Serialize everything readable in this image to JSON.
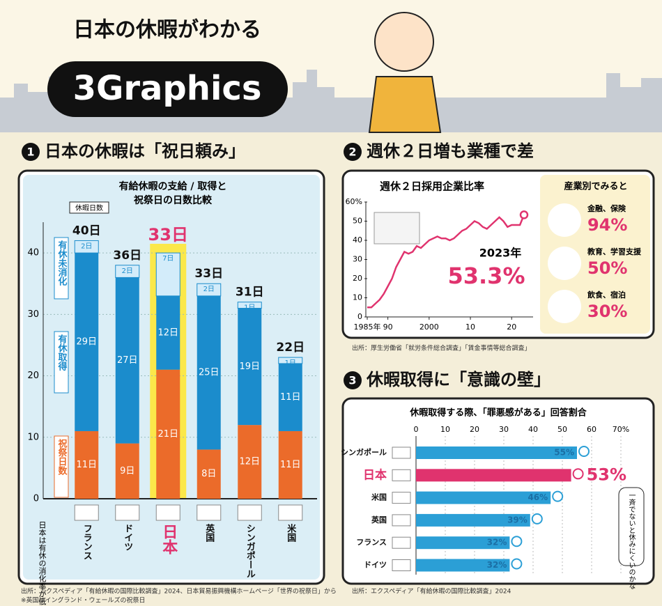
{
  "header": {
    "subtitle": "日本の休暇がわかる",
    "title": "3Graphics"
  },
  "sections": [
    {
      "number": "1",
      "title": "日本の休暇は「祝日頼み」"
    },
    {
      "number": "2",
      "title": "週休２日増も業種で差"
    },
    {
      "number": "3",
      "title": "休暇取得に「意識の壁」"
    }
  ],
  "chart_data": [
    {
      "type": "bar",
      "stacked": true,
      "title": "有給休暇の支給 / 取得と",
      "title2": "祝祭日の日数比較",
      "axis_label": "休暇日数",
      "categories": [
        "フランス",
        "ドイツ",
        "日本",
        "英国",
        "シンガポール",
        "米国"
      ],
      "series": [
        {
          "name": "祝祭日数",
          "color": "#eb6b2a",
          "values": [
            11,
            9,
            21,
            8,
            12,
            11
          ],
          "value_labels": [
            "11日",
            "9日",
            "21日",
            "8日",
            "12日",
            "11日"
          ]
        },
        {
          "name": "有休取得",
          "color": "#1b8ccc",
          "values": [
            29,
            27,
            12,
            25,
            19,
            11
          ],
          "value_labels": [
            "29日",
            "27日",
            "12日",
            "25日",
            "19日",
            "11日"
          ]
        },
        {
          "name": "有休未消化",
          "color": "#d3ecfa",
          "values": [
            2,
            2,
            7,
            2,
            1,
            1
          ],
          "value_labels": [
            "2日",
            "2日",
            "7日",
            "2日",
            "1日",
            "1日"
          ]
        }
      ],
      "total_labels": [
        "40日",
        "36日",
        "33日",
        "33日",
        "31日",
        "22日"
      ],
      "highlight": 2,
      "ylim": [
        0,
        45
      ],
      "yticks": [
        0,
        10,
        20,
        30,
        40
      ],
      "grid": true,
      "annotation": "日本は有休の消化率が低い",
      "source": "出所：エクスペディア「有給休暇の国際比較調査」2024、日本貿易振興機構ホームページ「世界の祝祭日」から",
      "note": "※英国はイングランド・ウェールズの祝祭日"
    },
    {
      "type": "line",
      "title": "週休２日採用企業比率",
      "color": "#e0336e",
      "x": [
        1985,
        1986,
        1987,
        1988,
        1989,
        1990,
        1991,
        1992,
        1993,
        1994,
        1995,
        1996,
        1997,
        1998,
        1999,
        2000,
        2001,
        2002,
        2003,
        2004,
        2005,
        2006,
        2007,
        2008,
        2009,
        2010,
        2011,
        2012,
        2013,
        2014,
        2015,
        2016,
        2017,
        2018,
        2019,
        2020,
        2021,
        2022,
        2023
      ],
      "values": [
        5,
        5,
        7,
        9,
        12,
        16,
        20,
        26,
        30,
        34,
        33,
        34,
        37,
        36,
        38,
        40,
        41,
        42,
        41,
        41,
        40,
        41,
        43,
        45,
        46,
        48,
        50,
        49,
        47,
        46,
        48,
        50,
        52,
        50,
        47,
        48,
        48,
        48,
        53.3
      ],
      "annotation": {
        "label": "2023年",
        "value_label": "53.3%"
      },
      "xlim": [
        1984,
        2025
      ],
      "ylim": [
        0,
        60
      ],
      "xticks": [
        {
          "value": 1985,
          "label": "1985年"
        },
        {
          "value": 1990,
          "label": "90"
        },
        2000,
        {
          "value": 2010,
          "label": "10"
        },
        {
          "value": 2020,
          "label": "20"
        }
      ],
      "yticks": [
        0,
        10,
        20,
        30,
        40,
        50,
        {
          "value": 60,
          "label": "60%"
        }
      ],
      "side_title": "産業別でみると",
      "side_items": [
        {
          "name": "金融、保険",
          "value": "94%"
        },
        {
          "name": "教育、学習支援",
          "value": "50%"
        },
        {
          "name": "飲食、宿泊",
          "value": "30%"
        }
      ],
      "source": "出所：厚生労働省「就労条件総合調査」「賃金事情等総合調査」"
    },
    {
      "type": "bar",
      "orientation": "horizontal",
      "title": "休暇取得する際、「罪悪感がある」回答割合",
      "categories": [
        "シンガポール",
        "日本",
        "米国",
        "英国",
        "フランス",
        "ドイツ"
      ],
      "values": [
        55,
        53,
        46,
        39,
        32,
        32
      ],
      "value_labels": [
        "55%",
        "53%",
        "46%",
        "39%",
        "32%",
        "32%"
      ],
      "color": "#2b9fd6",
      "highlight_color": "#e0336e",
      "highlight": 1,
      "xlim": [
        0,
        70
      ],
      "xticks": [
        0,
        10,
        20,
        30,
        40,
        50,
        60,
        {
          "value": 70,
          "label": "70%"
        }
      ],
      "annotation": "一斉でないと休みにくいのかな",
      "source": "出所：エクスペディア「有給休暇の国際比較調査」2024"
    }
  ]
}
